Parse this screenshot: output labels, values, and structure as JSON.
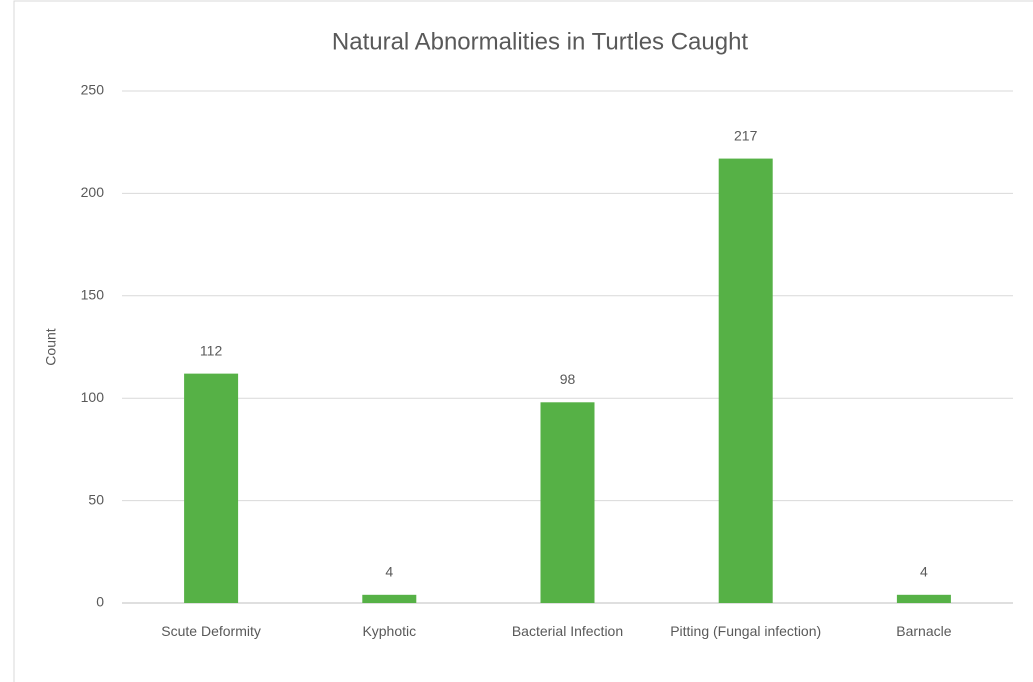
{
  "chart_data": {
    "type": "bar",
    "title": "Natural Abnormalities in Turtles Caught",
    "y_label": "Count",
    "categories": [
      "Scute Deformity",
      "Kyphotic",
      "Bacterial Infection",
      "Pitting (Fungal infection)",
      "Barnacle"
    ],
    "values": [
      112,
      4,
      98,
      217,
      4
    ],
    "color": "#56b146",
    "ylim": [
      0,
      250
    ],
    "yticks": [
      0,
      50,
      100,
      150,
      200,
      250
    ],
    "grid": true
  }
}
